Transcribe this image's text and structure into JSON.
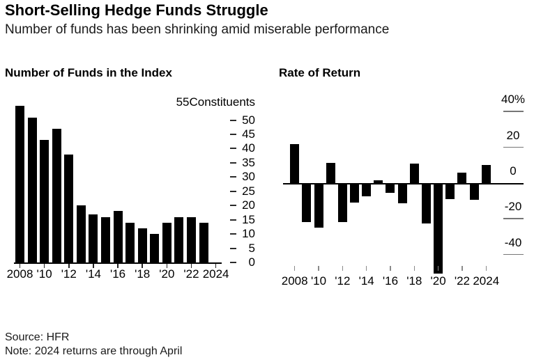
{
  "header": {
    "title": "Short-Selling Hedge Funds Struggle",
    "subtitle": "Number of funds has been shrinking amid miserable performance"
  },
  "footer": {
    "source": "Source: HFR",
    "note": "Note: 2024 returns are through April"
  },
  "colors": {
    "bar": "#000000",
    "axis": "#000000",
    "grid_line": "#767676",
    "minor_tick": "#8a8a8a",
    "text": "#000000"
  },
  "chart_data": [
    {
      "type": "bar",
      "title": "Number of Funds in the Index",
      "unit_label": "Constituents",
      "max_value_label": "55",
      "categories": [
        2008,
        2009,
        2010,
        2011,
        2012,
        2013,
        2014,
        2015,
        2016,
        2017,
        2018,
        2019,
        2020,
        2021,
        2022,
        2023
      ],
      "values": [
        55,
        51,
        43,
        47,
        38,
        20,
        17,
        16,
        18,
        14,
        12,
        10,
        14,
        16,
        16,
        14
      ],
      "x_tick_labels": [
        "2008",
        "'10",
        "'12",
        "'14",
        "'16",
        "'18",
        "'20",
        "'22",
        "2024"
      ],
      "y_ticks": [
        0,
        5,
        10,
        15,
        20,
        25,
        30,
        35,
        40,
        45,
        50
      ],
      "ylim": [
        0,
        55
      ],
      "grid": false,
      "legend": "none"
    },
    {
      "type": "bar",
      "title": "Rate of Return",
      "unit_suffix": "%",
      "categories": [
        2008,
        2009,
        2010,
        2011,
        2012,
        2013,
        2014,
        2015,
        2016,
        2017,
        2018,
        2019,
        2020,
        2021,
        2022,
        2023,
        2024
      ],
      "values": [
        22,
        -21,
        -24,
        11.5,
        -21,
        -10,
        -6.5,
        1.5,
        -4.5,
        -10.5,
        11,
        -22,
        -50,
        -8,
        6,
        -8.5,
        10
      ],
      "x_tick_labels": [
        "2008",
        "'10",
        "'12",
        "'14",
        "'16",
        "'18",
        "'20",
        "'22",
        "2024"
      ],
      "y_ticks": [
        {
          "value": 40,
          "label": "40%"
        },
        {
          "value": 20,
          "label": "20"
        },
        {
          "value": 0,
          "label": "0"
        },
        {
          "value": -20,
          "label": "-20"
        },
        {
          "value": -40,
          "label": "-40"
        }
      ],
      "ylim": [
        -55,
        42
      ],
      "grid": false,
      "legend": "none"
    }
  ]
}
